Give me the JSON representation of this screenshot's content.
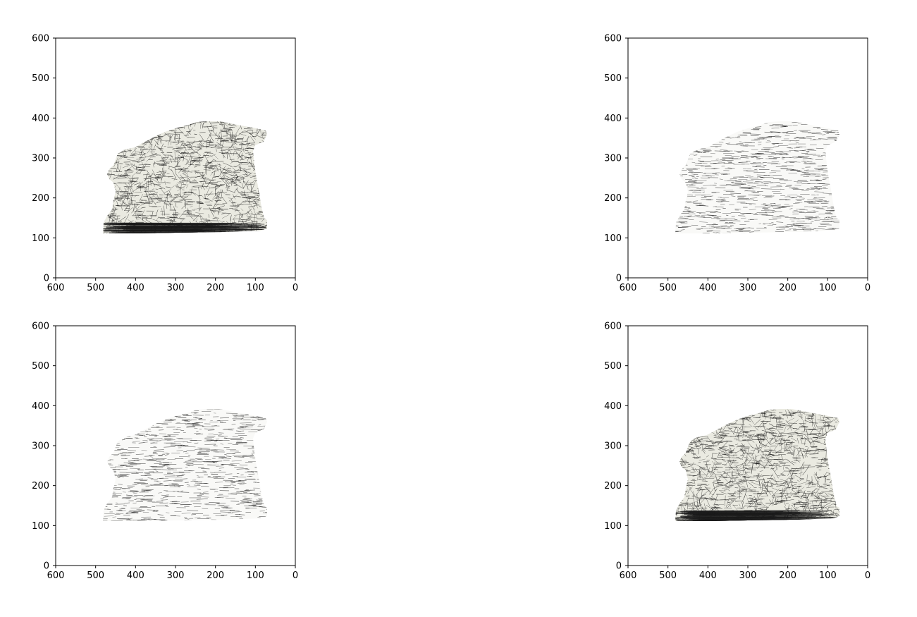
{
  "figure": {
    "background": "#ffffff",
    "mesh_color": "#1a1a1a",
    "mesh_tint": "#d8d8c8"
  },
  "chart_data": [
    {
      "type": "image",
      "content": "wireframe-mesh-dog-statue",
      "mesh_density": "dense",
      "xlim": [
        600,
        0
      ],
      "ylim": [
        0,
        600
      ],
      "xticks": [
        "600",
        "500",
        "400",
        "300",
        "200",
        "100",
        "0"
      ],
      "yticks": [
        "0",
        "100",
        "200",
        "300",
        "400",
        "500",
        "600"
      ],
      "title": "",
      "xlabel": "",
      "ylabel": ""
    },
    {
      "type": "image",
      "content": "wireframe-mesh-dog-statue",
      "mesh_density": "sparse",
      "xlim": [
        600,
        0
      ],
      "ylim": [
        0,
        600
      ],
      "xticks": [
        "600",
        "500",
        "400",
        "300",
        "200",
        "100",
        "0"
      ],
      "yticks": [
        "0",
        "100",
        "200",
        "300",
        "400",
        "500",
        "600"
      ],
      "title": "",
      "xlabel": "",
      "ylabel": ""
    },
    {
      "type": "image",
      "content": "wireframe-mesh-dog-statue",
      "mesh_density": "sparse",
      "xlim": [
        600,
        0
      ],
      "ylim": [
        0,
        600
      ],
      "xticks": [
        "600",
        "500",
        "400",
        "300",
        "200",
        "100",
        "0"
      ],
      "yticks": [
        "0",
        "100",
        "200",
        "300",
        "400",
        "500",
        "600"
      ],
      "title": "",
      "xlabel": "",
      "ylabel": ""
    },
    {
      "type": "image",
      "content": "wireframe-mesh-dog-statue",
      "mesh_density": "dense",
      "xlim": [
        600,
        0
      ],
      "ylim": [
        0,
        600
      ],
      "xticks": [
        "600",
        "500",
        "400",
        "300",
        "200",
        "100",
        "0"
      ],
      "yticks": [
        "0",
        "100",
        "200",
        "300",
        "400",
        "500",
        "600"
      ],
      "title": "",
      "xlabel": "",
      "ylabel": ""
    }
  ]
}
